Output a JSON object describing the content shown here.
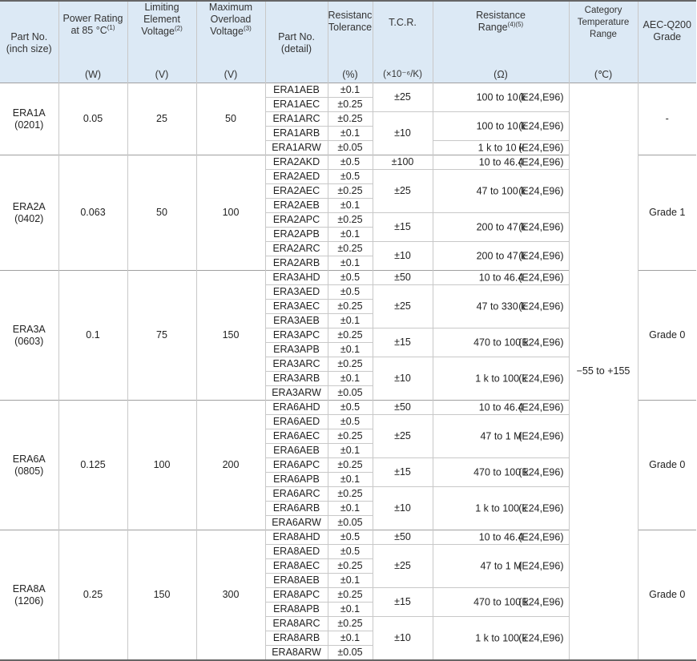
{
  "header": {
    "part_no_inch": [
      "Part No.",
      "(inch size)"
    ],
    "power_rating": [
      "Power Rating",
      "at 85 °C"
    ],
    "power_sup": "(1)",
    "power_unit": "(W)",
    "limiting": [
      "Limiting",
      "Element",
      "Voltage"
    ],
    "limiting_sup": "(2)",
    "limiting_unit": "(V)",
    "overload": [
      "Maximum",
      "Overload",
      "Voltage"
    ],
    "overload_sup": "(3)",
    "overload_unit": "(V)",
    "part_no_detail": [
      "Part No.",
      "(detail)"
    ],
    "tolerance": [
      "Resistance",
      "Tolerance"
    ],
    "tolerance_unit": "(%)",
    "tcr": "T.C.R.",
    "tcr_unit": "(×10⁻⁶/K)",
    "range": [
      "Resistance",
      "Range"
    ],
    "range_sup": "(4)(5)",
    "range_unit": "(Ω)",
    "category": [
      "Category",
      "Temperature",
      "Range"
    ],
    "category_unit": "(℃)",
    "aec": [
      "AEC-Q200",
      "Grade"
    ]
  },
  "category_value": "−55 to +155",
  "groups": [
    {
      "part": "ERA1A",
      "inch": "(0201)",
      "power": "0.05",
      "limiting": "25",
      "overload": "50",
      "aec": "-",
      "rows": [
        {
          "detail": "ERA1AEB",
          "tol": "±0.1"
        },
        {
          "detail": "ERA1AEC",
          "tol": "±0.25"
        },
        {
          "detail": "ERA1ARC",
          "tol": "±0.25"
        },
        {
          "detail": "ERA1ARB",
          "tol": "±0.1"
        },
        {
          "detail": "ERA1ARW",
          "tol": "±0.05"
        }
      ],
      "tcr_blocks": [
        {
          "tcr": "±25",
          "span": 2,
          "ranges": [
            {
              "range": "100 to 10 k",
              "series": "(E24,E96)",
              "span": 2
            }
          ]
        },
        {
          "tcr": "±10",
          "span": 3,
          "ranges": [
            {
              "range": "100 to 10 k",
              "series": "(E24,E96)",
              "span": 2
            },
            {
              "range": "1 k to 10 k",
              "series": "(E24,E96)",
              "span": 1
            }
          ]
        }
      ]
    },
    {
      "part": "ERA2A",
      "inch": "(0402)",
      "power": "0.063",
      "limiting": "50",
      "overload": "100",
      "aec": "Grade 1",
      "rows": [
        {
          "detail": "ERA2AKD",
          "tol": "±0.5"
        },
        {
          "detail": "ERA2AED",
          "tol": "±0.5"
        },
        {
          "detail": "ERA2AEC",
          "tol": "±0.25"
        },
        {
          "detail": "ERA2AEB",
          "tol": "±0.1"
        },
        {
          "detail": "ERA2APC",
          "tol": "±0.25"
        },
        {
          "detail": "ERA2APB",
          "tol": "±0.1"
        },
        {
          "detail": "ERA2ARC",
          "tol": "±0.25"
        },
        {
          "detail": "ERA2ARB",
          "tol": "±0.1"
        }
      ],
      "tcr_blocks": [
        {
          "tcr": "±100",
          "span": 1,
          "ranges": [
            {
              "range": "10 to 46.4",
              "series": "(E24,E96)",
              "span": 1
            }
          ]
        },
        {
          "tcr": "±25",
          "span": 3,
          "ranges": [
            {
              "range": "47 to 100 k",
              "series": "(E24,E96)",
              "span": 3
            }
          ]
        },
        {
          "tcr": "±15",
          "span": 2,
          "ranges": [
            {
              "range": "200 to 47 k",
              "series": "(E24,E96)",
              "span": 2
            }
          ]
        },
        {
          "tcr": "±10",
          "span": 2,
          "ranges": [
            {
              "range": "200 to 47 k",
              "series": "(E24,E96)",
              "span": 2
            }
          ]
        }
      ]
    },
    {
      "part": "ERA3A",
      "inch": "(0603)",
      "power": "0.1",
      "limiting": "75",
      "overload": "150",
      "aec": "Grade 0",
      "rows": [
        {
          "detail": "ERA3AHD",
          "tol": "±0.5"
        },
        {
          "detail": "ERA3AED",
          "tol": "±0.5"
        },
        {
          "detail": "ERA3AEC",
          "tol": "±0.25"
        },
        {
          "detail": "ERA3AEB",
          "tol": "±0.1"
        },
        {
          "detail": "ERA3APC",
          "tol": "±0.25"
        },
        {
          "detail": "ERA3APB",
          "tol": "±0.1"
        },
        {
          "detail": "ERA3ARC",
          "tol": "±0.25"
        },
        {
          "detail": "ERA3ARB",
          "tol": "±0.1"
        },
        {
          "detail": "ERA3ARW",
          "tol": "±0.05"
        }
      ],
      "tcr_blocks": [
        {
          "tcr": "±50",
          "span": 1,
          "ranges": [
            {
              "range": "10 to 46.4",
              "series": "(E24,E96)",
              "span": 1
            }
          ]
        },
        {
          "tcr": "±25",
          "span": 3,
          "ranges": [
            {
              "range": "47 to 330 k",
              "series": "(E24,E96)",
              "span": 3
            }
          ]
        },
        {
          "tcr": "±15",
          "span": 2,
          "ranges": [
            {
              "range": "470 to 100 k",
              "series": "(E24,E96)",
              "span": 2
            }
          ]
        },
        {
          "tcr": "±10",
          "span": 3,
          "ranges": [
            {
              "range": "1 k to 100 k",
              "series": "(E24,E96)",
              "span": 3
            }
          ]
        }
      ]
    },
    {
      "part": "ERA6A",
      "inch": "(0805)",
      "power": "0.125",
      "limiting": "100",
      "overload": "200",
      "aec": "Grade 0",
      "rows": [
        {
          "detail": "ERA6AHD",
          "tol": "±0.5"
        },
        {
          "detail": "ERA6AED",
          "tol": "±0.5"
        },
        {
          "detail": "ERA6AEC",
          "tol": "±0.25"
        },
        {
          "detail": "ERA6AEB",
          "tol": "±0.1"
        },
        {
          "detail": "ERA6APC",
          "tol": "±0.25"
        },
        {
          "detail": "ERA6APB",
          "tol": "±0.1"
        },
        {
          "detail": "ERA6ARC",
          "tol": "±0.25"
        },
        {
          "detail": "ERA6ARB",
          "tol": "±0.1"
        },
        {
          "detail": "ERA6ARW",
          "tol": "±0.05"
        }
      ],
      "tcr_blocks": [
        {
          "tcr": "±50",
          "span": 1,
          "ranges": [
            {
              "range": "10 to 46.4",
              "series": "(E24,E96)",
              "span": 1
            }
          ]
        },
        {
          "tcr": "±25",
          "span": 3,
          "ranges": [
            {
              "range": "47 to 1 M",
              "series": "(E24,E96)",
              "span": 3
            }
          ]
        },
        {
          "tcr": "±15",
          "span": 2,
          "ranges": [
            {
              "range": "470 to 100 k",
              "series": "(E24,E96)",
              "span": 2
            }
          ]
        },
        {
          "tcr": "±10",
          "span": 3,
          "ranges": [
            {
              "range": "1 k to 100 k",
              "series": "(E24,E96)",
              "span": 3
            }
          ]
        }
      ]
    },
    {
      "part": "ERA8A",
      "inch": "(1206)",
      "power": "0.25",
      "limiting": "150",
      "overload": "300",
      "aec": "Grade 0",
      "rows": [
        {
          "detail": "ERA8AHD",
          "tol": "±0.5"
        },
        {
          "detail": "ERA8AED",
          "tol": "±0.5"
        },
        {
          "detail": "ERA8AEC",
          "tol": "±0.25"
        },
        {
          "detail": "ERA8AEB",
          "tol": "±0.1"
        },
        {
          "detail": "ERA8APC",
          "tol": "±0.25"
        },
        {
          "detail": "ERA8APB",
          "tol": "±0.1"
        },
        {
          "detail": "ERA8ARC",
          "tol": "±0.25"
        },
        {
          "detail": "ERA8ARB",
          "tol": "±0.1"
        },
        {
          "detail": "ERA8ARW",
          "tol": "±0.05"
        }
      ],
      "tcr_blocks": [
        {
          "tcr": "±50",
          "span": 1,
          "ranges": [
            {
              "range": "10 to 46.4",
              "series": "(E24,E96)",
              "span": 1
            }
          ]
        },
        {
          "tcr": "±25",
          "span": 3,
          "ranges": [
            {
              "range": "47 to 1 M",
              "series": "(E24,E96)",
              "span": 3
            }
          ]
        },
        {
          "tcr": "±15",
          "span": 2,
          "ranges": [
            {
              "range": "470 to 100 k",
              "series": "(E24,E96)",
              "span": 2
            }
          ]
        },
        {
          "tcr": "±10",
          "span": 3,
          "ranges": [
            {
              "range": "1 k to 100 k",
              "series": "(E24,E96)",
              "span": 3
            }
          ]
        }
      ]
    }
  ]
}
